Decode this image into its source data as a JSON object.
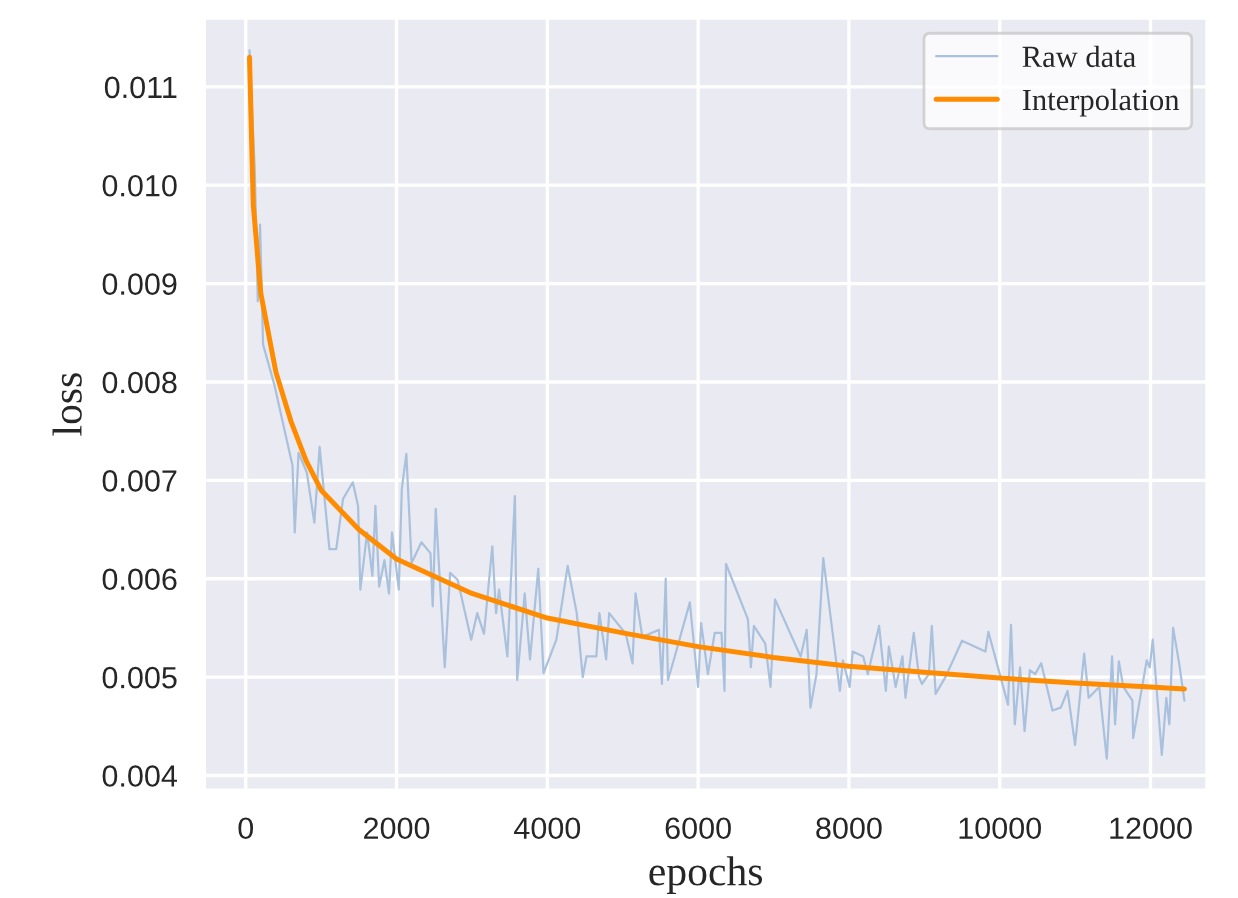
{
  "chart_data": {
    "type": "line",
    "xlabel": "epochs",
    "ylabel": "loss",
    "xlim": [
      -550,
      12750
    ],
    "ylim": [
      0.00385,
      0.0117
    ],
    "xticks": [
      0,
      2000,
      4000,
      6000,
      8000,
      10000,
      12000
    ],
    "yticks": [
      {
        "value": 0.004,
        "label": "0.004"
      },
      {
        "value": 0.005,
        "label": "0.005"
      },
      {
        "value": 0.006,
        "label": "0.006"
      },
      {
        "value": 0.007,
        "label": "0.007"
      },
      {
        "value": 0.008,
        "label": "0.008"
      },
      {
        "value": 0.009,
        "label": "0.009"
      },
      {
        "value": 0.01,
        "label": "0.010"
      },
      {
        "value": 0.011,
        "label": "0.011"
      }
    ],
    "grid": true,
    "legend": "top right",
    "line_style": "solid",
    "marker": "none",
    "series": [
      {
        "name": "Raw data",
        "color": "#a9c1dd",
        "x": [
          50,
          120,
          160,
          190,
          230,
          380,
          620,
          650,
          700,
          810,
          910,
          980,
          1110,
          1200,
          1290,
          1420,
          1490,
          1520,
          1610,
          1680,
          1720,
          1770,
          1840,
          1900,
          1940,
          2030,
          2070,
          2130,
          2200,
          2330,
          2450,
          2480,
          2520,
          2640,
          2710,
          2810,
          2990,
          3070,
          3160,
          3270,
          3320,
          3360,
          3470,
          3570,
          3600,
          3700,
          3770,
          3880,
          3950,
          4120,
          4270,
          4390,
          4470,
          4520,
          4650,
          4690,
          4780,
          4820,
          5040,
          5130,
          5170,
          5260,
          5480,
          5520,
          5570,
          5600,
          5690,
          5890,
          6000,
          6040,
          6130,
          6220,
          6310,
          6350,
          6370,
          6660,
          6700,
          6740,
          6890,
          6960,
          7020,
          7360,
          7440,
          7490,
          7570,
          7660,
          7880,
          7920,
          8010,
          8050,
          8190,
          8250,
          8400,
          8490,
          8530,
          8620,
          8710,
          8750,
          8860,
          8930,
          8970,
          9060,
          9100,
          9150,
          9280,
          9500,
          9810,
          9850,
          10110,
          10150,
          10200,
          10270,
          10330,
          10400,
          10470,
          10550,
          10700,
          10810,
          10900,
          11000,
          11120,
          11180,
          11320,
          11420,
          11490,
          11530,
          11580,
          11640,
          11760,
          11770,
          11950,
          11990,
          12030,
          12150,
          12210,
          12250,
          12300,
          12380,
          12450
        ],
        "values": [
          0.01137,
          0.01015,
          0.00882,
          0.0096,
          0.00838,
          0.00797,
          0.00715,
          0.00647,
          0.00728,
          0.00708,
          0.00657,
          0.00734,
          0.0063,
          0.0063,
          0.00681,
          0.00698,
          0.00674,
          0.00589,
          0.00647,
          0.00603,
          0.00674,
          0.00592,
          0.00619,
          0.00585,
          0.00647,
          0.00589,
          0.00691,
          0.00727,
          0.00616,
          0.00637,
          0.00626,
          0.00572,
          0.00671,
          0.0051,
          0.00606,
          0.00599,
          0.00538,
          0.00565,
          0.00544,
          0.00633,
          0.00565,
          0.00589,
          0.00521,
          0.00684,
          0.00497,
          0.00585,
          0.00518,
          0.0061,
          0.00504,
          0.00538,
          0.00613,
          0.00565,
          0.005,
          0.00521,
          0.00521,
          0.00565,
          0.00518,
          0.00565,
          0.00544,
          0.00514,
          0.00585,
          0.00541,
          0.00548,
          0.00493,
          0.006,
          0.00497,
          0.00521,
          0.00576,
          0.0049,
          0.00555,
          0.00503,
          0.00545,
          0.00545,
          0.00486,
          0.00615,
          0.00559,
          0.0051,
          0.00552,
          0.00534,
          0.0049,
          0.00579,
          0.00521,
          0.00548,
          0.00469,
          0.00503,
          0.00621,
          0.00486,
          0.00517,
          0.0049,
          0.00526,
          0.00521,
          0.00503,
          0.00552,
          0.00486,
          0.00531,
          0.0049,
          0.00521,
          0.00479,
          0.00545,
          0.005,
          0.00493,
          0.00503,
          0.00552,
          0.00483,
          0.005,
          0.00537,
          0.00526,
          0.00546,
          0.00472,
          0.00553,
          0.00452,
          0.0051,
          0.00445,
          0.00507,
          0.00503,
          0.00514,
          0.00466,
          0.00469,
          0.00486,
          0.00431,
          0.00524,
          0.00479,
          0.0049,
          0.00417,
          0.00521,
          0.00452,
          0.00516,
          0.0049,
          0.00476,
          0.00438,
          0.00517,
          0.0051,
          0.00538,
          0.00421,
          0.00479,
          0.00452,
          0.0055,
          0.00514,
          0.00476
        ]
      },
      {
        "name": "Interpolation",
        "color": "#ff8c00",
        "x": [
          50,
          100,
          200,
          400,
          600,
          800,
          1000,
          1500,
          2000,
          3000,
          4000,
          5000,
          6000,
          7000,
          8000,
          9000,
          10000,
          11000,
          12000,
          12450
        ],
        "values": [
          0.0113,
          0.0098,
          0.0089,
          0.0081,
          0.0076,
          0.0072,
          0.0069,
          0.0065,
          0.0062,
          0.00585,
          0.0056,
          0.00545,
          0.00531,
          0.0052,
          0.00511,
          0.00505,
          0.00499,
          0.00494,
          0.0049,
          0.00488
        ]
      }
    ]
  }
}
